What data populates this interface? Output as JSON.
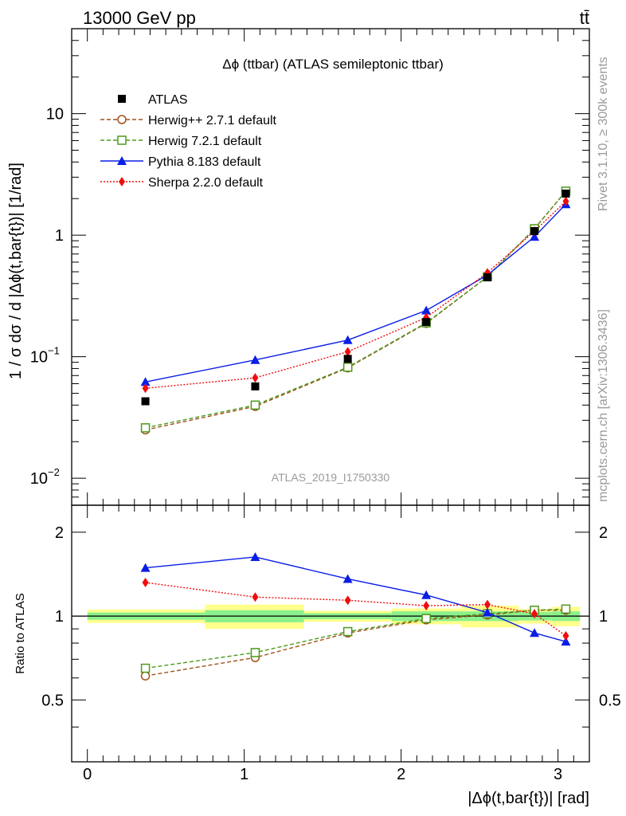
{
  "header": {
    "left": "13000 GeV pp",
    "right": "tt̄"
  },
  "side_labels": {
    "rivet": "Rivet 3.1.10, ≥ 300k events",
    "mcplots": "mcplots.cern.ch [arXiv:1306.3436]"
  },
  "chart_data": {
    "type": "line",
    "title": "Δϕ (ttbar) (ATLAS semileptonic ttbar)",
    "watermark": "ATLAS_2019_I1750330",
    "xlabel": "|Δϕ(t,bar{t})| [rad]",
    "ylabel": "1 / σ dσ / d |Δϕ(t,bar{t})| [1/rad]",
    "ratio_ylabel": "Ratio to ATLAS",
    "xlim": [
      -0.1,
      3.2
    ],
    "ylim": [
      0.006,
      50
    ],
    "ratio_ylim": [
      0.3,
      2.5
    ],
    "scale": "log",
    "x_ticks": [
      0,
      1,
      2,
      3
    ],
    "x_tick_labels": [
      "0",
      "1",
      "2",
      "3"
    ],
    "y_ticks": [
      0.01,
      0.1,
      1,
      10
    ],
    "y_tick_labels": [
      {
        "base": "10",
        "exp": "−2"
      },
      {
        "base": "10",
        "exp": "−1"
      },
      {
        "base": "1",
        "exp": ""
      },
      {
        "base": "10",
        "exp": ""
      }
    ],
    "ratio_ticks": [
      0.5,
      1,
      2
    ],
    "ratio_tick_labels": [
      "0.5",
      "1",
      "2"
    ],
    "bins": [
      {
        "lo": 0.0,
        "hi": 0.75,
        "stat": 0.03,
        "total": 0.055
      },
      {
        "lo": 0.75,
        "hi": 1.38,
        "stat": 0.05,
        "total": 0.1
      },
      {
        "lo": 1.38,
        "hi": 1.94,
        "stat": 0.025,
        "total": 0.045
      },
      {
        "lo": 1.94,
        "hi": 2.38,
        "stat": 0.04,
        "total": 0.065
      },
      {
        "lo": 2.38,
        "hi": 2.75,
        "stat": 0.04,
        "total": 0.09
      },
      {
        "lo": 2.75,
        "hi": 2.96,
        "stat": 0.035,
        "total": 0.06
      },
      {
        "lo": 2.96,
        "hi": 3.14,
        "stat": 0.04,
        "total": 0.08
      }
    ],
    "x": [
      0.37,
      1.07,
      1.66,
      2.16,
      2.55,
      2.85,
      3.05
    ],
    "data": {
      "name": "ATLAS",
      "values": [
        0.043,
        0.057,
        0.096,
        0.193,
        0.45,
        1.08,
        2.2
      ]
    },
    "series": [
      {
        "name": "Herwig++ 2.7.1 default",
        "color": "#a0521c",
        "dash": "5,3",
        "marker": "circle-open",
        "values": [
          0.025,
          0.039,
          0.081,
          0.188,
          0.455,
          1.13,
          2.3
        ],
        "ratio": [
          0.61,
          0.71,
          0.87,
          0.97,
          1.01,
          1.05,
          1.05
        ]
      },
      {
        "name": "Herwig 7.2.1 default",
        "color": "#4d9a1c",
        "dash": "5,3",
        "marker": "square-open",
        "values": [
          0.026,
          0.04,
          0.082,
          0.19,
          0.455,
          1.13,
          2.3
        ],
        "ratio": [
          0.65,
          0.74,
          0.88,
          0.98,
          1.02,
          1.05,
          1.06
        ]
      },
      {
        "name": "Pythia 8.183 default",
        "color": "#0a1ee6",
        "dash": "",
        "marker": "triangle",
        "values": [
          0.062,
          0.094,
          0.137,
          0.24,
          0.47,
          0.97,
          1.8
        ],
        "ratio": [
          1.49,
          1.63,
          1.36,
          1.19,
          1.03,
          0.87,
          0.81
        ]
      },
      {
        "name": "Sherpa 2.2.0 default",
        "color": "#f20c0c",
        "dash": "2,2",
        "marker": "diamond",
        "values": [
          0.055,
          0.067,
          0.11,
          0.21,
          0.49,
          1.08,
          1.9
        ],
        "ratio": [
          1.32,
          1.17,
          1.14,
          1.09,
          1.1,
          1.02,
          0.85
        ]
      }
    ]
  }
}
